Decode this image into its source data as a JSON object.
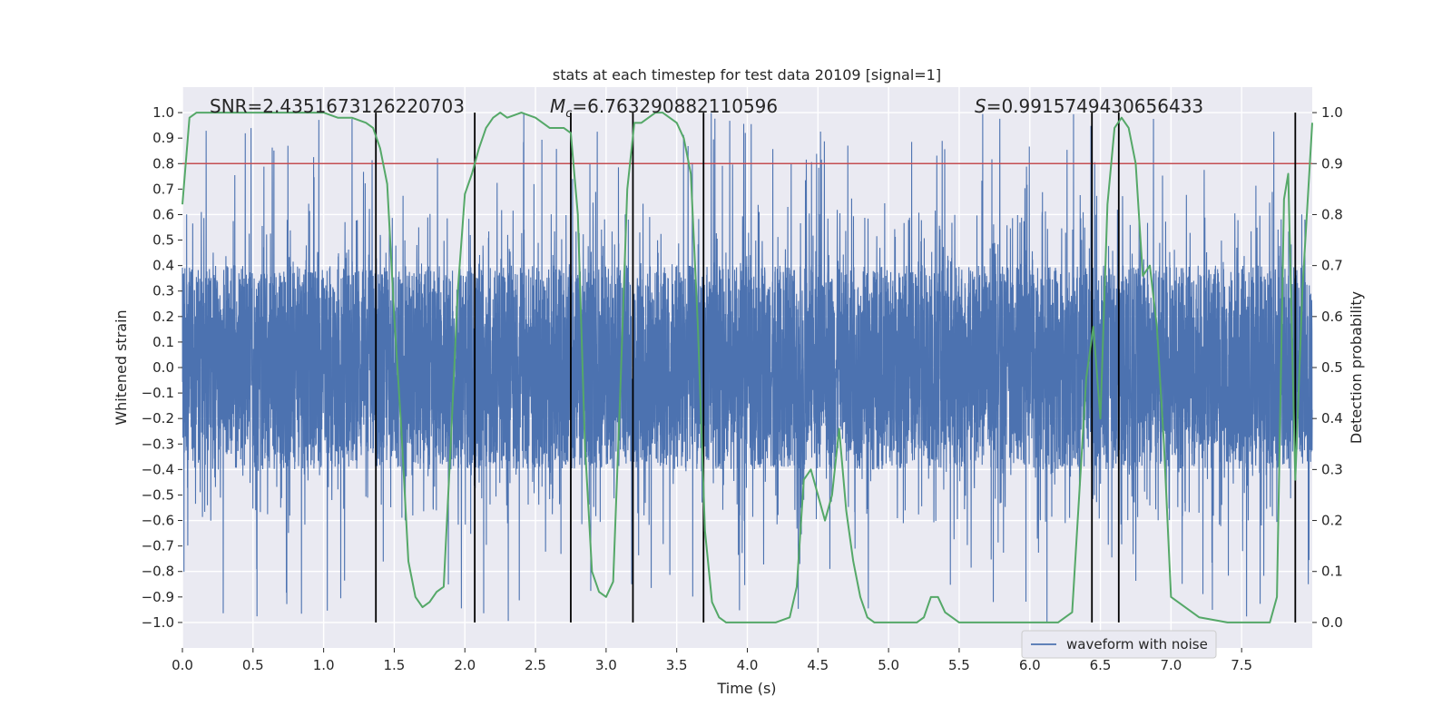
{
  "chart_data": {
    "type": "line",
    "title": "stats at each timestep for test data 20109 [signal=1]",
    "xlabel": "Time (s)",
    "ylabel": "Whitened strain",
    "y2label": "Detection probability",
    "xlim": [
      0.0,
      8.0
    ],
    "ylim": [
      -1.1,
      1.1
    ],
    "y2lim": [
      -0.05,
      1.05
    ],
    "xticks": [
      "0.0",
      "0.5",
      "1.0",
      "1.5",
      "2.0",
      "2.5",
      "3.0",
      "3.5",
      "4.0",
      "4.5",
      "5.0",
      "5.5",
      "6.0",
      "6.5",
      "7.0",
      "7.5"
    ],
    "yticks": [
      "-1.0",
      "-0.9",
      "-0.8",
      "-0.7",
      "-0.6",
      "-0.5",
      "-0.4",
      "-0.3",
      "-0.2",
      "-0.1",
      "0.0",
      "0.1",
      "0.2",
      "0.3",
      "0.4",
      "0.5",
      "0.6",
      "0.7",
      "0.8",
      "0.9",
      "1.0"
    ],
    "y2ticks": [
      "0.0",
      "0.1",
      "0.2",
      "0.3",
      "0.4",
      "0.5",
      "0.6",
      "0.7",
      "0.8",
      "0.9",
      "1.0"
    ],
    "grid": true,
    "legend_position": "lower-right",
    "annotations": {
      "snr": "SNR=2.4351673126220703",
      "mc_symbol": "M",
      "mc_sub": "c",
      "mc_value": "=6.763290882110596",
      "s_symbol": "S",
      "s_value": "=0.9915749430656433"
    },
    "threshold": 0.9,
    "vertical_lines": [
      1.37,
      2.07,
      2.75,
      3.19,
      3.69,
      6.44,
      6.63,
      7.88
    ],
    "series": [
      {
        "name": "waveform with noise",
        "kind": "noise-strain",
        "color": "#4c72b0",
        "points": 8000,
        "envelope_core": 0.4,
        "envelope_peak": 1.0
      },
      {
        "kind": "probability",
        "color": "#55a868",
        "x": [
          0.0,
          0.05,
          0.1,
          0.2,
          0.4,
          0.6,
          0.8,
          1.0,
          1.1,
          1.2,
          1.3,
          1.35,
          1.4,
          1.45,
          1.5,
          1.55,
          1.6,
          1.65,
          1.7,
          1.75,
          1.8,
          1.85,
          1.9,
          1.95,
          2.0,
          2.05,
          2.1,
          2.15,
          2.2,
          2.25,
          2.3,
          2.4,
          2.5,
          2.55,
          2.6,
          2.7,
          2.75,
          2.8,
          2.85,
          2.9,
          2.95,
          3.0,
          3.05,
          3.1,
          3.15,
          3.2,
          3.25,
          3.3,
          3.35,
          3.4,
          3.45,
          3.5,
          3.55,
          3.6,
          3.65,
          3.7,
          3.75,
          3.8,
          3.85,
          3.9,
          3.95,
          4.0,
          4.1,
          4.2,
          4.3,
          4.35,
          4.4,
          4.45,
          4.5,
          4.55,
          4.6,
          4.65,
          4.7,
          4.75,
          4.8,
          4.85,
          4.9,
          4.95,
          5.0,
          5.1,
          5.2,
          5.25,
          5.3,
          5.35,
          5.4,
          5.45,
          5.5,
          5.55,
          5.6,
          5.7,
          5.8,
          5.9,
          6.0,
          6.1,
          6.15,
          6.2,
          6.25,
          6.3,
          6.35,
          6.4,
          6.45,
          6.5,
          6.55,
          6.6,
          6.65,
          6.7,
          6.75,
          6.8,
          6.85,
          6.9,
          6.95,
          7.0,
          7.2,
          7.4,
          7.5,
          7.6,
          7.65,
          7.7,
          7.75,
          7.8,
          7.83,
          7.88,
          7.93,
          8.0
        ],
        "y": [
          0.82,
          0.99,
          1.0,
          1.0,
          1.0,
          1.0,
          1.0,
          1.0,
          0.99,
          0.99,
          0.98,
          0.97,
          0.93,
          0.86,
          0.6,
          0.38,
          0.12,
          0.05,
          0.03,
          0.04,
          0.06,
          0.07,
          0.35,
          0.65,
          0.84,
          0.88,
          0.93,
          0.97,
          0.99,
          1.0,
          0.99,
          1.0,
          0.99,
          0.98,
          0.97,
          0.97,
          0.96,
          0.8,
          0.35,
          0.1,
          0.06,
          0.05,
          0.08,
          0.45,
          0.85,
          0.98,
          0.98,
          0.99,
          1.0,
          1.0,
          0.99,
          0.98,
          0.95,
          0.88,
          0.58,
          0.18,
          0.04,
          0.01,
          0.0,
          0.0,
          0.0,
          0.0,
          0.0,
          0.0,
          0.01,
          0.07,
          0.28,
          0.3,
          0.25,
          0.2,
          0.25,
          0.38,
          0.22,
          0.12,
          0.05,
          0.01,
          0.0,
          0.0,
          0.0,
          0.0,
          0.0,
          0.01,
          0.05,
          0.05,
          0.02,
          0.01,
          0.0,
          0.0,
          0.0,
          0.0,
          0.0,
          0.0,
          0.0,
          0.0,
          0.0,
          0.0,
          0.01,
          0.02,
          0.25,
          0.48,
          0.58,
          0.4,
          0.82,
          0.97,
          0.99,
          0.97,
          0.9,
          0.68,
          0.7,
          0.58,
          0.35,
          0.05,
          0.01,
          0.0,
          0.0,
          0.0,
          0.0,
          0.0,
          0.05,
          0.83,
          0.88,
          0.28,
          0.65,
          0.98
        ]
      }
    ]
  }
}
